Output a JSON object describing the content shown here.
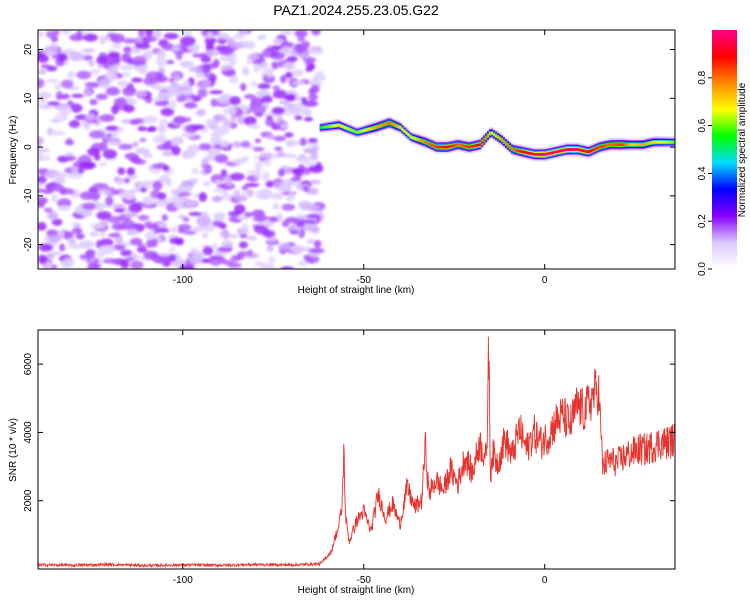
{
  "title": "PAZ1.2024.255.23.05.G22",
  "chart_data": [
    {
      "type": "heatmap",
      "xlabel": "Height of straight line (km)",
      "ylabel": "Frequency (Hz)",
      "xlim": [
        -140,
        36
      ],
      "ylim": [
        -25,
        24
      ],
      "xticks": [
        -100,
        -50,
        0
      ],
      "xtick_labels": [
        "-100",
        "-50",
        "0"
      ],
      "yticks": [
        -20,
        -10,
        0,
        10,
        20
      ],
      "ytick_labels": [
        "-20",
        "-10",
        "0",
        "10",
        "20"
      ],
      "noise_region_x": [
        -140,
        -62
      ],
      "signal_track": {
        "x": [
          -62,
          -57,
          -52,
          -47,
          -43,
          -40,
          -37,
          -33,
          -30,
          -27,
          -24,
          -21,
          -18,
          -15,
          -12,
          -9,
          -6,
          -3,
          0,
          3,
          6,
          9,
          12,
          15,
          18,
          21,
          24,
          27,
          30,
          33,
          36
        ],
        "frequency": [
          4,
          4.5,
          3,
          4,
          5,
          4,
          2,
          1,
          0,
          0,
          0.5,
          0,
          0.5,
          3,
          1.5,
          -0.5,
          -1,
          -1.5,
          -1.5,
          -1,
          -0.5,
          -0.5,
          -1,
          0,
          0.5,
          0.5,
          0.5,
          0.5,
          1,
          1,
          1
        ],
        "peak_amplitude": [
          0.55,
          0.7,
          0.6,
          0.75,
          0.8,
          0.7,
          0.65,
          0.8,
          0.85,
          0.9,
          0.8,
          0.85,
          0.9,
          0.7,
          0.75,
          0.8,
          0.9,
          0.95,
          1.0,
          0.95,
          0.98,
          0.95,
          0.9,
          0.85,
          0.8,
          0.85,
          0.7,
          0.75,
          0.7,
          0.65,
          0.6
        ]
      },
      "colorbar": {
        "label": "Normalized spectral amplitude",
        "range": [
          0,
          1
        ],
        "ticks": [
          0.0,
          0.2,
          0.4,
          0.6,
          0.8
        ],
        "tick_labels": [
          "0.0",
          "0.2",
          "0.4",
          "0.6",
          "0.8"
        ],
        "colors": [
          "#ffffff",
          "#dcc8ff",
          "#8800ff",
          "#0000ff",
          "#00ddff",
          "#00ff00",
          "#ffff00",
          "#ff8800",
          "#ff0000",
          "#ff0088"
        ]
      }
    },
    {
      "type": "line",
      "xlabel": "Height of straight line (km)",
      "ylabel": "SNR (10 * v/v)",
      "xlim": [
        -140,
        36
      ],
      "ylim": [
        0,
        7000
      ],
      "xticks": [
        -100,
        -50,
        0
      ],
      "xtick_labels": [
        "-100",
        "-50",
        "0"
      ],
      "yticks": [
        2000,
        4000,
        6000
      ],
      "ytick_labels": [
        "2000",
        "4000",
        "6000"
      ],
      "color": "#e8322c",
      "series": [
        {
          "x": [
            -140,
            -130,
            -120,
            -110,
            -100,
            -90,
            -80,
            -70,
            -62,
            -59,
            -58,
            -57,
            -56,
            -55.5,
            -55,
            -54,
            -52,
            -50,
            -48,
            -46,
            -44,
            -42,
            -40,
            -38,
            -36,
            -34,
            -33,
            -32,
            -30,
            -28,
            -26,
            -24,
            -22,
            -20,
            -18,
            -16,
            -15.5,
            -15,
            -14.5,
            -13,
            -11,
            -9,
            -7,
            -5,
            -3,
            -1,
            1,
            3,
            5,
            7,
            9,
            11,
            13,
            14.5,
            15,
            16,
            18,
            20,
            22,
            24,
            26,
            28,
            30,
            32,
            34,
            36
          ],
          "values": [
            120,
            110,
            130,
            100,
            120,
            110,
            130,
            120,
            150,
            500,
            900,
            1200,
            1800,
            3500,
            1500,
            800,
            1400,
            1700,
            1100,
            2200,
            1500,
            1900,
            1300,
            2400,
            1800,
            2000,
            3600,
            2200,
            2600,
            2300,
            2900,
            2500,
            3300,
            2800,
            3700,
            3200,
            6900,
            2700,
            3400,
            3100,
            3800,
            3300,
            4100,
            3500,
            4000,
            3700,
            3900,
            4300,
            4500,
            4200,
            4800,
            4600,
            5000,
            5300,
            5100,
            3000,
            3200,
            3100,
            3300,
            3400,
            3500,
            3500,
            3600,
            3700,
            3700,
            3800
          ]
        }
      ]
    }
  ]
}
